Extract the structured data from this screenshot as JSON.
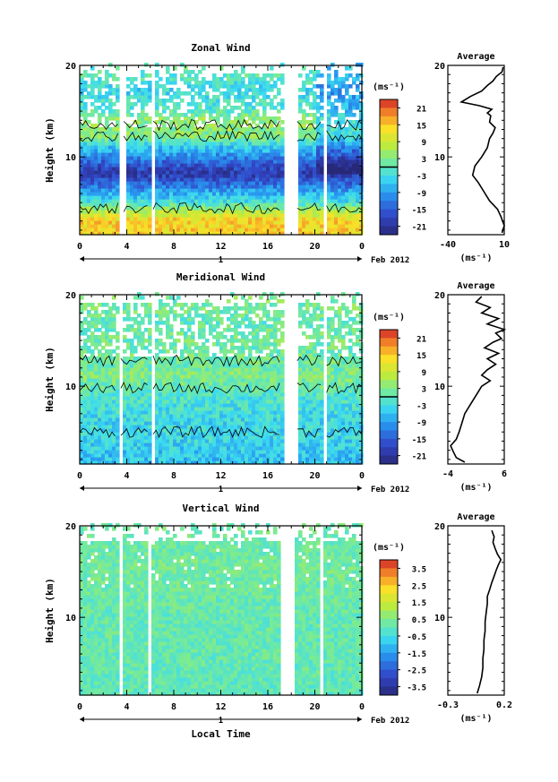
{
  "figure": {
    "xlabel": "Local Time",
    "date_label": "Feb 2012",
    "day_label": "1"
  },
  "chart_data": [
    {
      "type": "heatmap",
      "title": "Zonal Wind",
      "ylabel": "Height (km)",
      "xlabel": "",
      "x_ticks": [
        "0",
        "4",
        "8",
        "12",
        "16",
        "20",
        "0"
      ],
      "y_ticks": [
        "10",
        "20"
      ],
      "xlim": [
        0,
        24
      ],
      "ylim": [
        1.5,
        20
      ],
      "colorbar": {
        "unit": "(ms⁻¹)",
        "range": [
          -24,
          24
        ],
        "ticks": [
          "21",
          "15",
          "9",
          "3",
          "-3",
          "-9",
          "-15",
          "-21"
        ],
        "contour_level": 0
      },
      "data_gaps_hours": [
        [
          3.3,
          3.7
        ],
        [
          5.8,
          6.2
        ],
        [
          17.2,
          18.3
        ],
        [
          20.6,
          20.9
        ]
      ],
      "field_description_profile": [
        {
          "height": 2,
          "value": 14
        },
        {
          "height": 3,
          "value": 14
        },
        {
          "height": 4,
          "value": 6
        },
        {
          "height": 5,
          "value": -3
        },
        {
          "height": 6,
          "value": -8
        },
        {
          "height": 7,
          "value": -14
        },
        {
          "height": 8,
          "value": -20
        },
        {
          "height": 9,
          "value": -16
        },
        {
          "height": 10,
          "value": -10
        },
        {
          "height": 11,
          "value": -5
        },
        {
          "height": 12,
          "value": 3
        },
        {
          "height": 13,
          "value": 4
        },
        {
          "height": 14,
          "value": 4
        },
        {
          "height": 15,
          "value": -1
        },
        {
          "height": 16,
          "value": -2
        },
        {
          "height": 17,
          "value": -4
        },
        {
          "height": 18,
          "value": -2
        },
        {
          "height": 19,
          "value": 0
        }
      ],
      "average_profile": {
        "title": "Average",
        "xlabel": "(ms⁻¹)",
        "x_ticks": [
          "-40",
          "10"
        ],
        "y_ticks": [
          "10",
          "20"
        ],
        "xlim": [
          -40,
          10
        ],
        "ylim": [
          1.5,
          20
        ],
        "points": [
          [
            8,
            1.7
          ],
          [
            10,
            2.5
          ],
          [
            7,
            3.5
          ],
          [
            4,
            4.3
          ],
          [
            -3,
            5.2
          ],
          [
            -8,
            6.2
          ],
          [
            -13,
            7.2
          ],
          [
            -18,
            8.0
          ],
          [
            -16,
            9.0
          ],
          [
            -10,
            10.0
          ],
          [
            -5,
            11.0
          ],
          [
            -3,
            12.0
          ],
          [
            0,
            12.6
          ],
          [
            2,
            13.2
          ],
          [
            -3,
            13.8
          ],
          [
            -2,
            14.5
          ],
          [
            -5,
            14.8
          ],
          [
            -1,
            15.2
          ],
          [
            -12,
            15.6
          ],
          [
            -28,
            16.0
          ],
          [
            -20,
            16.6
          ],
          [
            -10,
            17.2
          ],
          [
            -5,
            17.8
          ],
          [
            0,
            18.3
          ],
          [
            3,
            18.8
          ],
          [
            8,
            19.3
          ],
          [
            9,
            19.8
          ]
        ]
      }
    },
    {
      "type": "heatmap",
      "title": "Meridional Wind",
      "ylabel": "Height (km)",
      "xlabel": "",
      "x_ticks": [
        "0",
        "4",
        "8",
        "12",
        "16",
        "20",
        "0"
      ],
      "y_ticks": [
        "10",
        "20"
      ],
      "xlim": [
        0,
        24
      ],
      "ylim": [
        1.5,
        20
      ],
      "colorbar": {
        "unit": "(ms⁻¹)",
        "range": [
          -24,
          24
        ],
        "ticks": [
          "21",
          "15",
          "9",
          "3",
          "-3",
          "-9",
          "-15",
          "-21"
        ],
        "contour_level": 0
      },
      "data_gaps_hours": [
        [
          3.1,
          3.5
        ],
        [
          5.8,
          6.2
        ],
        [
          17.2,
          18.3
        ],
        [
          20.6,
          20.9
        ]
      ],
      "field_description_profile": [
        {
          "height": 2,
          "value": -6
        },
        {
          "height": 3,
          "value": -5
        },
        {
          "height": 4,
          "value": -4
        },
        {
          "height": 5,
          "value": -4
        },
        {
          "height": 6,
          "value": -4
        },
        {
          "height": 7,
          "value": -3
        },
        {
          "height": 8,
          "value": -2
        },
        {
          "height": 9,
          "value": -1
        },
        {
          "height": 10,
          "value": 1
        },
        {
          "height": 11,
          "value": 3
        },
        {
          "height": 12,
          "value": 1
        },
        {
          "height": 13,
          "value": 2
        },
        {
          "height": 14,
          "value": 1
        },
        {
          "height": 15,
          "value": 2
        },
        {
          "height": 16,
          "value": 1
        },
        {
          "height": 17,
          "value": 0
        },
        {
          "height": 18,
          "value": 2
        }
      ],
      "average_profile": {
        "title": "Average",
        "xlabel": "(ms⁻¹)",
        "x_ticks": [
          "-4",
          "6"
        ],
        "y_ticks": [
          "10",
          "20"
        ],
        "xlim": [
          -4,
          6
        ],
        "ylim": [
          1.5,
          20
        ],
        "points": [
          [
            -1,
            1.7
          ],
          [
            -2.5,
            2.2
          ],
          [
            -3,
            2.8
          ],
          [
            -3.5,
            3.5
          ],
          [
            -2.5,
            4.2
          ],
          [
            -2,
            5.0
          ],
          [
            -1.5,
            6.0
          ],
          [
            -1,
            7.0
          ],
          [
            0,
            8.0
          ],
          [
            1,
            9.0
          ],
          [
            2,
            10.0
          ],
          [
            3.5,
            10.6
          ],
          [
            2,
            11.2
          ],
          [
            3,
            11.8
          ],
          [
            4.5,
            12.4
          ],
          [
            3,
            13.0
          ],
          [
            5,
            13.6
          ],
          [
            2.5,
            14.2
          ],
          [
            4,
            14.8
          ],
          [
            5.5,
            15.2
          ],
          [
            4.5,
            15.8
          ],
          [
            6,
            16.2
          ],
          [
            3,
            16.8
          ],
          [
            5,
            17.4
          ],
          [
            2,
            18.0
          ],
          [
            3.5,
            18.6
          ],
          [
            1,
            19.2
          ],
          [
            2,
            19.8
          ]
        ]
      }
    },
    {
      "type": "heatmap",
      "title": "Vertical Wind",
      "ylabel": "Height (km)",
      "xlabel": "Local Time",
      "x_ticks": [
        "0",
        "4",
        "8",
        "12",
        "16",
        "20",
        "0"
      ],
      "y_ticks": [
        "10",
        "20"
      ],
      "xlim": [
        0,
        24
      ],
      "ylim": [
        1.5,
        20
      ],
      "colorbar": {
        "unit": "(ms⁻¹)",
        "range": [
          -4,
          4
        ],
        "ticks": [
          "3.5",
          "2.5",
          "1.5",
          "0.5",
          "-0.5",
          "-1.5",
          "-2.5",
          "-3.5"
        ]
      },
      "data_gaps_hours": [
        [
          3.1,
          3.5
        ],
        [
          5.6,
          6.0
        ],
        [
          16.9,
          18.2
        ],
        [
          20.3,
          20.7
        ]
      ],
      "field_description_profile": [
        {
          "height": 2,
          "value": 0.0
        },
        {
          "height": 5,
          "value": 0.1
        },
        {
          "height": 10,
          "value": 0.1
        },
        {
          "height": 15,
          "value": 0.3
        },
        {
          "height": 18,
          "value": 0.2
        }
      ],
      "average_profile": {
        "title": "Average",
        "xlabel": "(ms⁻¹)",
        "x_ticks": [
          "-0.3",
          "0.2"
        ],
        "y_ticks": [
          "10",
          "20"
        ],
        "xlim": [
          -0.3,
          0.2
        ],
        "ylim": [
          1.5,
          20
        ],
        "points": [
          [
            -0.04,
            1.7
          ],
          [
            -0.02,
            2.5
          ],
          [
            0.0,
            3.5
          ],
          [
            0.01,
            4.5
          ],
          [
            0.01,
            5.5
          ],
          [
            0.02,
            6.5
          ],
          [
            0.02,
            7.5
          ],
          [
            0.03,
            8.5
          ],
          [
            0.03,
            9.5
          ],
          [
            0.04,
            10.5
          ],
          [
            0.05,
            11.5
          ],
          [
            0.05,
            12.3
          ],
          [
            0.07,
            13.0
          ],
          [
            0.09,
            13.8
          ],
          [
            0.11,
            14.5
          ],
          [
            0.13,
            15.2
          ],
          [
            0.15,
            15.8
          ],
          [
            0.17,
            16.3
          ],
          [
            0.14,
            16.9
          ],
          [
            0.12,
            17.5
          ],
          [
            0.1,
            18.2
          ],
          [
            0.11,
            18.8
          ],
          [
            0.09,
            19.5
          ]
        ]
      }
    }
  ]
}
